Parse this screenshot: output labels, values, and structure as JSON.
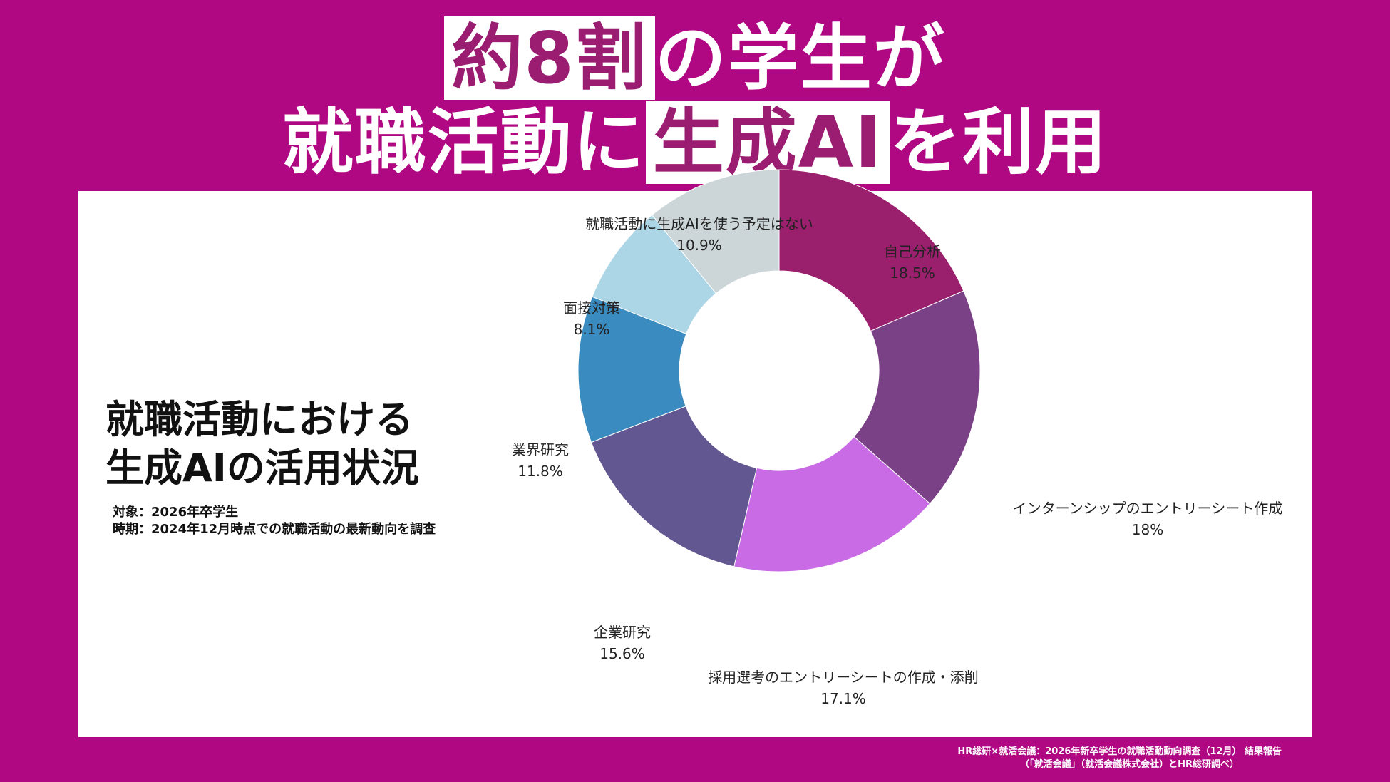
{
  "headline": {
    "line1_highlight": "約8割",
    "line1_rest": "の学生が",
    "line2_start": "就職活動に",
    "line2_highlight": "生成AI",
    "line2_end": "を利用"
  },
  "panel": {
    "title_line1": "就職活動における",
    "title_line2": "生成AIの活用状況",
    "meta_target": "対象：2026年卒学生",
    "meta_period": "時期：2024年12月時点での就職活動の最新動向を調査"
  },
  "footer": {
    "line1": "HR総研×就活会議：2026年新卒学生の就職活動動向調査（12月） 結果報告",
    "line2": "（「就活会議」（就活会議株式会社）とHR総研調べ）"
  },
  "colors": {
    "background": "#b00782",
    "headline_highlight_text": "#9b1d72"
  },
  "chart_data": {
    "type": "pie",
    "donut": true,
    "slices": [
      {
        "label": "自己分析",
        "value": 18.5,
        "value_label": "18.5%",
        "color": "#9a1f6c"
      },
      {
        "label": "インターンシップのエントリーシート作成",
        "value": 18.0,
        "value_label": "18%",
        "color": "#7b4187"
      },
      {
        "label": "採用選考のエントリーシートの作成・添削",
        "value": 17.1,
        "value_label": "17.1%",
        "color": "#c86be4"
      },
      {
        "label": "企業研究",
        "value": 15.6,
        "value_label": "15.6%",
        "color": "#625790"
      },
      {
        "label": "業界研究",
        "value": 11.8,
        "value_label": "11.8%",
        "color": "#3a8bc0"
      },
      {
        "label": "面接対策",
        "value": 8.1,
        "value_label": "8.1%",
        "color": "#acd5e6"
      },
      {
        "label": "就職活動に生成AIを使う予定はない",
        "value": 10.9,
        "value_label": "10.9%",
        "color": "#ccd6d8"
      }
    ]
  }
}
